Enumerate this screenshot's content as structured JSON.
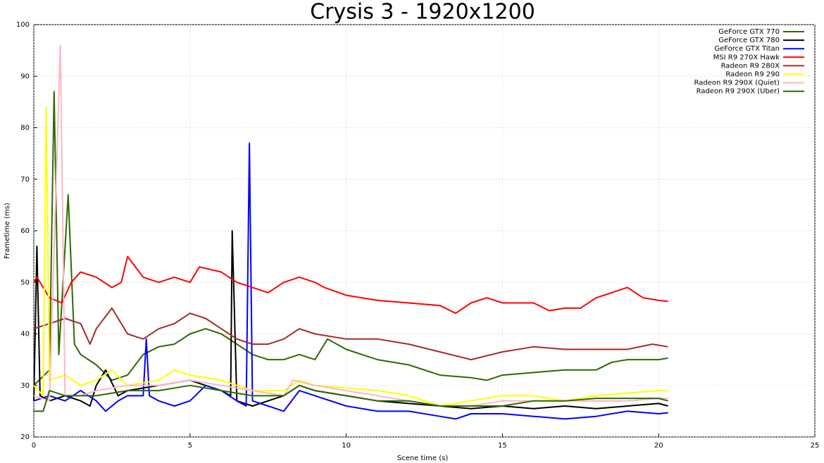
{
  "chart_data": {
    "type": "line",
    "title": "Crysis 3 - 1920x1200",
    "x_label": "Scene time (s)",
    "y_label": "Frametime (ms)",
    "xlim": [
      0,
      25
    ],
    "xticks": [
      0,
      5,
      10,
      15,
      20,
      25
    ],
    "ylim": [
      20,
      100
    ],
    "yticks": [
      20,
      30,
      40,
      50,
      60,
      70,
      80,
      90,
      100
    ],
    "grid": true,
    "legend": "upper-right",
    "series": [
      {
        "name": "GeForce GTX 770",
        "color": "#2d6a00",
        "x": [
          0,
          0.5,
          0.65,
          0.8,
          1.1,
          1.3,
          1.5,
          2,
          2.5,
          3,
          3.5,
          4,
          4.5,
          5,
          5.5,
          6,
          6.5,
          7,
          7.5,
          8,
          8.5,
          9,
          9.4,
          10,
          11,
          12,
          13,
          14,
          14.5,
          15,
          16,
          17,
          17.5,
          18,
          18.5,
          19,
          20,
          20.3
        ],
        "values": [
          30,
          33,
          87,
          36,
          67,
          38,
          36,
          34,
          31,
          32,
          36,
          37.5,
          38,
          40,
          41,
          40,
          38,
          36,
          35,
          35,
          36,
          35,
          39,
          37,
          35,
          34,
          32,
          31.5,
          31,
          32,
          32.5,
          33,
          33,
          33,
          34.5,
          35,
          35,
          35.3
        ]
      },
      {
        "name": "GeForce GTX 780",
        "color": "#000000",
        "x": [
          0,
          0.1,
          0.2,
          0.5,
          1,
          1.5,
          1.8,
          2,
          2.3,
          2.7,
          3,
          4,
          5,
          5.5,
          6,
          6.3,
          6.35,
          6.5,
          7,
          7.5,
          8,
          8.5,
          9,
          10,
          11,
          12,
          13,
          14,
          15,
          16,
          17,
          18,
          19,
          20,
          20.3
        ],
        "values": [
          27,
          57,
          28,
          27,
          28,
          27,
          26,
          30,
          33,
          28,
          29,
          30,
          31,
          30,
          29,
          28,
          60,
          27,
          26,
          27,
          28,
          30,
          29,
          28,
          27,
          26.5,
          26,
          25.5,
          26,
          25.5,
          26,
          25.5,
          26,
          26.5,
          26
        ]
      },
      {
        "name": "GeForce GTX Titan",
        "color": "#0000ff",
        "x": [
          0,
          0.5,
          1,
          1.5,
          2,
          2.3,
          2.7,
          3,
          3.5,
          3.6,
          3.7,
          4,
          4.5,
          5,
          5.5,
          6,
          6.5,
          6.8,
          6.9,
          7,
          7.5,
          8,
          8.5,
          9,
          10,
          11,
          12,
          13,
          13.5,
          14,
          15,
          16,
          17,
          18,
          19,
          20,
          20.3
        ],
        "values": [
          27,
          28,
          27,
          29,
          27,
          25,
          27,
          28,
          28,
          39,
          28,
          27,
          26,
          27,
          30,
          29,
          27,
          26,
          77,
          27,
          26,
          25,
          29,
          28,
          26,
          25,
          25,
          24,
          23.5,
          24.5,
          24.5,
          24,
          23.5,
          24,
          25,
          24.5,
          24.7
        ]
      },
      {
        "name": "MSI R9 270X Hawk",
        "color": "#ff0000",
        "x": [
          0,
          0.1,
          0.5,
          0.9,
          1.2,
          1.5,
          2,
          2.5,
          2.8,
          3,
          3.5,
          4,
          4.5,
          5,
          5.3,
          6,
          6.5,
          7,
          7.5,
          8,
          8.5,
          9,
          9.3,
          10,
          11,
          12,
          13,
          13.5,
          14,
          14.5,
          15,
          16,
          16.5,
          17,
          17.5,
          18,
          18.5,
          19,
          19.5,
          20,
          20.3
        ],
        "values": [
          50,
          51,
          47,
          46,
          50,
          52,
          51,
          49,
          50,
          55,
          51,
          50,
          51,
          50,
          53,
          52,
          50,
          49,
          48,
          50,
          51,
          50,
          49,
          47.5,
          46.5,
          46,
          45.5,
          44,
          46,
          47,
          46,
          46,
          44.5,
          45,
          45,
          47,
          48,
          49,
          47,
          46.5,
          46.3
        ]
      },
      {
        "name": "Radeon R9 280X",
        "color": "#a52a2a",
        "x": [
          0,
          0.5,
          1,
          1.5,
          1.8,
          2,
          2.5,
          3,
          3.5,
          4,
          4.5,
          5,
          5.5,
          6,
          6.5,
          7,
          7.5,
          8,
          8.5,
          9,
          10,
          11,
          12,
          13,
          14,
          15,
          16,
          17,
          18,
          19,
          19.8,
          20.3
        ],
        "values": [
          41,
          42,
          43,
          42,
          38,
          41,
          45,
          40,
          39,
          41,
          42,
          44,
          43,
          41,
          39,
          38,
          38,
          39,
          41,
          40,
          39,
          39,
          38,
          36.5,
          35,
          36.5,
          37.5,
          37,
          37,
          37,
          38,
          37.5
        ]
      },
      {
        "name": "Radeon R9 290",
        "color": "#ffff00",
        "x": [
          0,
          0.3,
          0.4,
          0.5,
          1,
          1.5,
          2,
          2.5,
          3,
          4,
          4.5,
          5,
          6,
          7,
          8,
          8.5,
          9,
          10,
          11,
          12,
          13,
          14,
          15,
          16,
          17,
          18,
          19,
          20,
          20.3
        ],
        "values": [
          30,
          28,
          84,
          31,
          32,
          30,
          31,
          33,
          30,
          31,
          33,
          32,
          31,
          29,
          29,
          31,
          30,
          29.5,
          29,
          28,
          26,
          27,
          28,
          28,
          27,
          28,
          28.5,
          29,
          29
        ]
      },
      {
        "name": "Radeon R9 290X (Quiet)",
        "color": "#ffb6c1",
        "x": [
          0,
          0.5,
          0.85,
          1,
          1.5,
          2,
          3,
          4,
          5,
          6,
          7,
          8,
          8.3,
          9,
          10,
          11,
          12,
          13,
          14,
          15,
          16,
          17,
          18,
          19,
          20,
          20.3
        ],
        "values": [
          28,
          27,
          96,
          28,
          28,
          29,
          30,
          30,
          31,
          30,
          29,
          28,
          31,
          30,
          29,
          28,
          27,
          26,
          26,
          27,
          27,
          27,
          27,
          27,
          27.5,
          27.5
        ]
      },
      {
        "name": "Radeon R9 290X (Uber)",
        "color": "#2d6a00",
        "x": [
          0,
          0.3,
          0.5,
          1,
          2,
          3,
          4,
          5,
          6,
          7,
          8,
          8.5,
          9,
          10,
          11,
          12,
          13,
          14,
          15,
          16,
          17,
          18,
          19,
          20,
          20.3
        ],
        "values": [
          25,
          25,
          29,
          28,
          28,
          29,
          29,
          30,
          29,
          28,
          28,
          30,
          29,
          28,
          27,
          27,
          26,
          26,
          26,
          27,
          27,
          27.5,
          27.5,
          27.5,
          27
        ]
      }
    ]
  }
}
